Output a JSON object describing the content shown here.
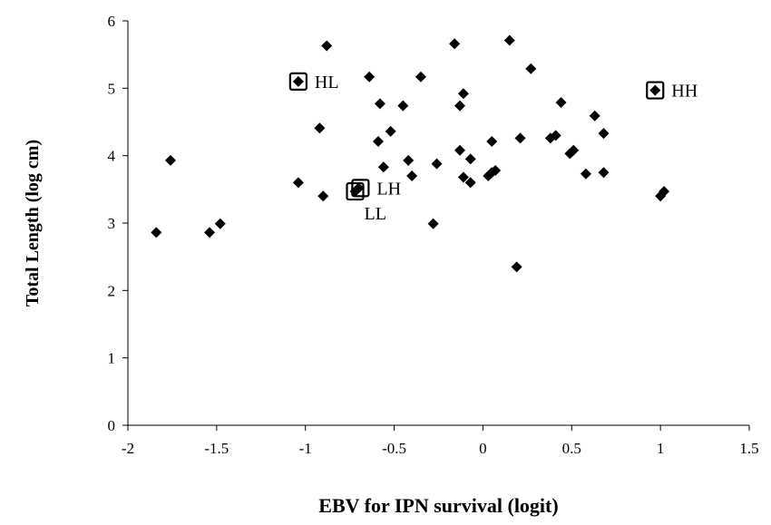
{
  "chart_data": {
    "type": "scatter",
    "title": "",
    "xlabel": "EBV for IPN survival (logit)",
    "ylabel": "Total Length (log cm)",
    "xlim": [
      -2,
      1.5
    ],
    "ylim": [
      0,
      6
    ],
    "xticks": [
      -2,
      -1.5,
      -1,
      -0.5,
      0,
      0.5,
      1,
      1.5
    ],
    "xtick_labels": [
      "-2",
      "-1.5",
      "-1",
      "-0.5",
      "0",
      "0.5",
      "1",
      "1.5"
    ],
    "yticks": [
      0,
      1,
      2,
      3,
      4,
      5,
      6
    ],
    "ytick_labels": [
      "0",
      "1",
      "2",
      "3",
      "4",
      "5",
      "6"
    ],
    "grid": false,
    "legend": "none",
    "marker_color": "#000000",
    "series": [
      {
        "points": [
          {
            "x": -1.84,
            "y": 2.86
          },
          {
            "x": -1.76,
            "y": 3.93
          },
          {
            "x": -1.54,
            "y": 2.86
          },
          {
            "x": -1.48,
            "y": 2.99
          },
          {
            "x": -1.04,
            "y": 3.6
          },
          {
            "x": -0.92,
            "y": 4.41
          },
          {
            "x": -0.9,
            "y": 3.4
          },
          {
            "x": -0.88,
            "y": 5.63
          },
          {
            "x": -0.64,
            "y": 5.17
          },
          {
            "x": -0.59,
            "y": 4.21
          },
          {
            "x": -0.58,
            "y": 4.77
          },
          {
            "x": -0.56,
            "y": 3.83
          },
          {
            "x": -0.52,
            "y": 4.36
          },
          {
            "x": -0.45,
            "y": 4.74
          },
          {
            "x": -0.42,
            "y": 3.93
          },
          {
            "x": -0.4,
            "y": 3.7
          },
          {
            "x": -0.35,
            "y": 5.17
          },
          {
            "x": -0.28,
            "y": 2.99
          },
          {
            "x": -0.26,
            "y": 3.88
          },
          {
            "x": -0.16,
            "y": 5.66
          },
          {
            "x": -0.13,
            "y": 4.74
          },
          {
            "x": -0.13,
            "y": 4.08
          },
          {
            "x": -0.11,
            "y": 4.92
          },
          {
            "x": -0.11,
            "y": 3.68
          },
          {
            "x": -0.07,
            "y": 3.95
          },
          {
            "x": -0.07,
            "y": 3.6
          },
          {
            "x": 0.03,
            "y": 3.7
          },
          {
            "x": 0.05,
            "y": 3.75
          },
          {
            "x": 0.05,
            "y": 4.21
          },
          {
            "x": 0.07,
            "y": 3.78
          },
          {
            "x": 0.15,
            "y": 5.71
          },
          {
            "x": 0.19,
            "y": 2.35
          },
          {
            "x": 0.21,
            "y": 4.26
          },
          {
            "x": 0.27,
            "y": 5.29
          },
          {
            "x": 0.38,
            "y": 4.26
          },
          {
            "x": 0.41,
            "y": 4.3
          },
          {
            "x": 0.44,
            "y": 4.79
          },
          {
            "x": 0.49,
            "y": 4.03
          },
          {
            "x": 0.51,
            "y": 4.08
          },
          {
            "x": 0.58,
            "y": 3.73
          },
          {
            "x": 0.63,
            "y": 4.59
          },
          {
            "x": 0.68,
            "y": 4.33
          },
          {
            "x": 0.68,
            "y": 3.75
          },
          {
            "x": 1.0,
            "y": 3.4
          },
          {
            "x": 1.02,
            "y": 3.47
          },
          {
            "x": -1.04,
            "y": 5.1
          },
          {
            "x": 0.97,
            "y": 4.97
          },
          {
            "x": -0.72,
            "y": 3.47
          },
          {
            "x": -0.7,
            "y": 3.52
          }
        ]
      }
    ],
    "annotations": [
      {
        "label": "HL",
        "x": -1.04,
        "y": 5.1,
        "boxed": true,
        "text_side": "right"
      },
      {
        "label": "HH",
        "x": 0.97,
        "y": 4.97,
        "boxed": true,
        "text_side": "right"
      },
      {
        "label": "LH",
        "x": -0.69,
        "y": 3.52,
        "boxed": true,
        "text_side": "right"
      },
      {
        "label": "LL",
        "x": -0.72,
        "y": 3.47,
        "boxed": true,
        "text_side": "below-right"
      }
    ]
  }
}
